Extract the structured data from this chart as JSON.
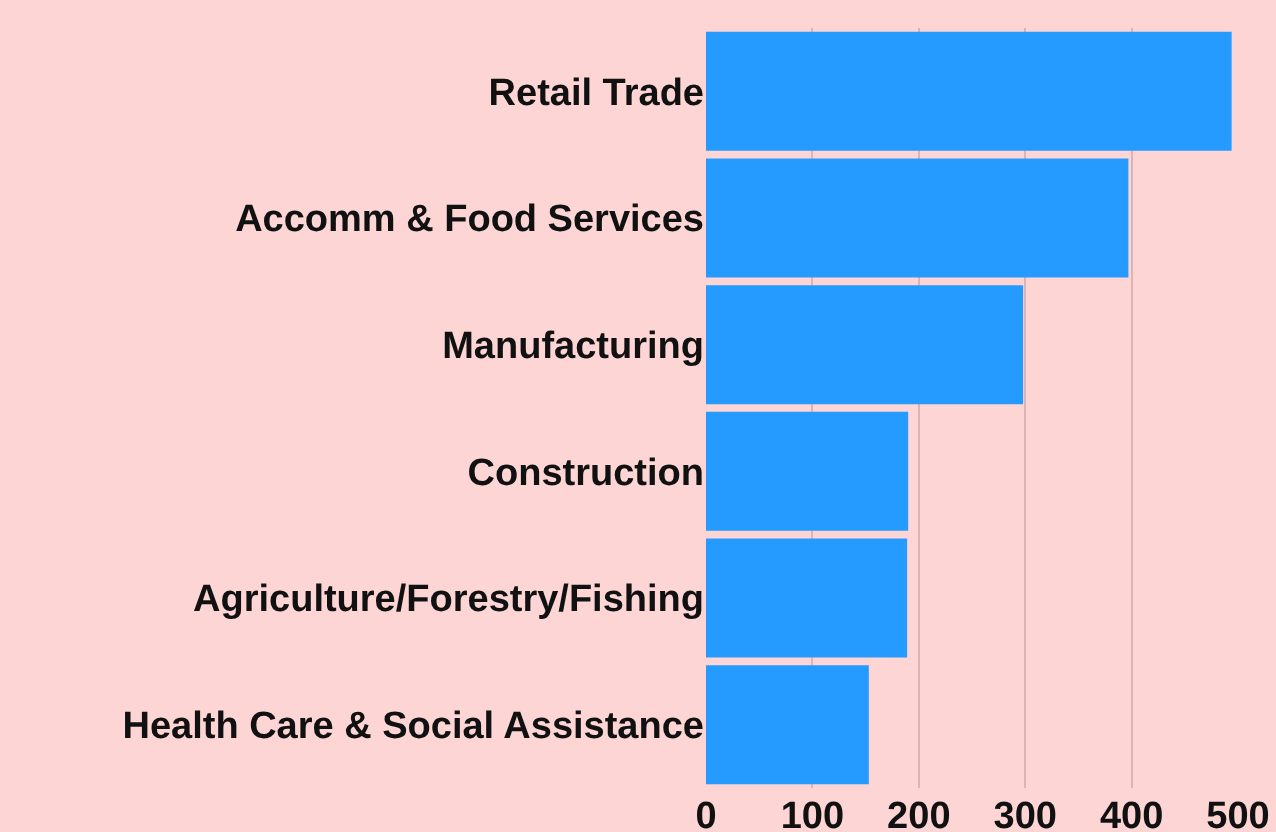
{
  "chart_data": {
    "type": "bar",
    "orientation": "horizontal",
    "categories": [
      "Retail Trade",
      "Accomm & Food Services",
      "Manufacturing",
      "Construction",
      "Agriculture/Forestry/Fishing",
      "Health Care & Social Assistance"
    ],
    "values": [
      494,
      397,
      298,
      190,
      189,
      153
    ],
    "color": "#259bff",
    "xlim": [
      0,
      500
    ],
    "xticks": [
      0,
      100,
      200,
      300,
      400,
      500
    ],
    "grid": "x"
  }
}
